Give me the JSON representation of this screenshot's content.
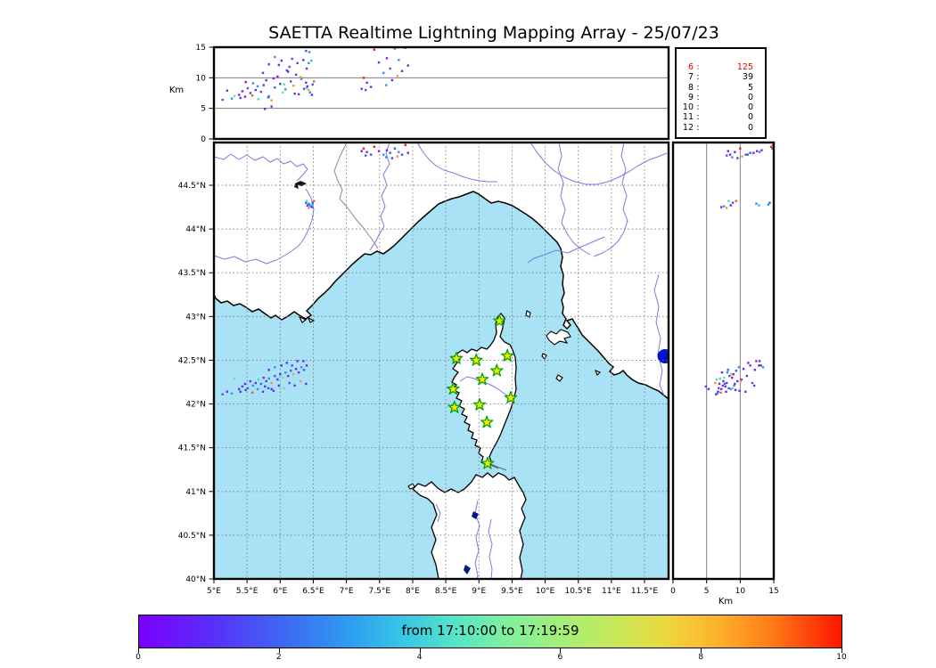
{
  "title": "SAETTA Realtime Lightning Mapping Array - 25/07/23",
  "chart_data": {
    "type": "scatter",
    "title": "SAETTA Realtime Lightning Mapping Array - 25/07/23",
    "panels": {
      "alt_vs_lon": {
        "ylabel": "Km",
        "ylim": [
          0,
          15
        ],
        "ytick_labels": [
          "0",
          "5",
          "10",
          "15"
        ],
        "grid": "horizontal at 5 and 10"
      },
      "map": {
        "xlim_deg_e": [
          5.0,
          11.86
        ],
        "ylim_deg_n": [
          40.0,
          45.0
        ],
        "lon_tick_labels": [
          "5°E",
          "5.5°E",
          "6°E",
          "6.5°E",
          "7°E",
          "7.5°E",
          "8°E",
          "8.5°E",
          "9°E",
          "9.5°E",
          "10°E",
          "10.5°E",
          "11°E",
          "11.5°E"
        ],
        "lat_tick_labels": [
          "44.5°N",
          "44°N",
          "43.5°N",
          "43°N",
          "42.5°N",
          "42°N",
          "41.5°N",
          "41°N",
          "40.5°N",
          "40°N"
        ],
        "grid": "dashed both axes every 0.5 degree"
      },
      "alt_vs_lat": {
        "xlabel": "Km",
        "xlim": [
          0,
          15
        ],
        "xtick_labels": [
          "0",
          "5",
          "10",
          "15"
        ],
        "grid": "vertical at 5 and 10"
      },
      "histogram": {
        "rows": [
          [
            "6",
            "125"
          ],
          [
            "7",
            "39"
          ],
          [
            "8",
            "5"
          ],
          [
            "9",
            "0"
          ],
          [
            "10",
            "0"
          ],
          [
            "11",
            "0"
          ],
          [
            "12",
            "0"
          ]
        ],
        "highlight_row": 0,
        "highlight_color": "#f20000"
      }
    },
    "palette": [
      "#7d22e8",
      "#5535f5",
      "#3a57f8",
      "#2e8ef2",
      "#2fb9ec",
      "#3fd9d0",
      "#6ce88e",
      "#aee85c",
      "#f2c23a",
      "#f59433",
      "#f4581f",
      "#ee2211"
    ],
    "events_lon_lat_altkm_color": [
      [
        5.38,
        42.17,
        7.2,
        0
      ],
      [
        5.43,
        42.2,
        7.8,
        1
      ],
      [
        5.47,
        42.23,
        6.9,
        0
      ],
      [
        5.51,
        42.18,
        8.3,
        2
      ],
      [
        5.55,
        42.26,
        7.5,
        0
      ],
      [
        5.59,
        42.21,
        9.1,
        3
      ],
      [
        5.63,
        42.24,
        8.0,
        1
      ],
      [
        5.67,
        42.28,
        6.5,
        5
      ],
      [
        5.71,
        42.23,
        7.7,
        2
      ],
      [
        5.75,
        42.3,
        8.8,
        0
      ],
      [
        5.79,
        42.26,
        9.6,
        1
      ],
      [
        5.83,
        42.29,
        7.0,
        3
      ],
      [
        5.87,
        42.24,
        6.3,
        9
      ],
      [
        5.92,
        42.32,
        8.4,
        2
      ],
      [
        5.96,
        42.28,
        10.2,
        0
      ],
      [
        6.0,
        42.34,
        9.0,
        1
      ],
      [
        6.04,
        42.3,
        7.6,
        6
      ],
      [
        6.08,
        42.36,
        8.1,
        3
      ],
      [
        6.12,
        42.32,
        11.0,
        0
      ],
      [
        6.16,
        42.38,
        9.4,
        2
      ],
      [
        6.2,
        42.34,
        8.7,
        9
      ],
      [
        6.24,
        42.4,
        10.5,
        1
      ],
      [
        6.28,
        42.36,
        7.3,
        0
      ],
      [
        6.32,
        42.42,
        9.8,
        3
      ],
      [
        6.36,
        42.39,
        8.2,
        2
      ],
      [
        6.4,
        42.44,
        11.5,
        0
      ],
      [
        5.4,
        42.14,
        6.7,
        1
      ],
      [
        5.48,
        42.16,
        9.3,
        0
      ],
      [
        5.58,
        42.13,
        7.1,
        10
      ],
      [
        5.66,
        42.17,
        8.6,
        3
      ],
      [
        5.74,
        42.14,
        10.8,
        0
      ],
      [
        5.82,
        42.18,
        6.8,
        2
      ],
      [
        5.9,
        42.15,
        9.9,
        1
      ],
      [
        5.98,
        42.21,
        12.1,
        0
      ],
      [
        6.06,
        42.18,
        8.9,
        6
      ],
      [
        6.14,
        42.24,
        11.8,
        2
      ],
      [
        6.22,
        42.21,
        7.4,
        0
      ],
      [
        6.31,
        42.26,
        10.1,
        9
      ],
      [
        6.39,
        42.23,
        9.2,
        1
      ],
      [
        5.27,
        42.12,
        6.6,
        3
      ],
      [
        5.2,
        42.14,
        7.9,
        0
      ],
      [
        5.13,
        42.11,
        6.4,
        2
      ],
      [
        6.02,
        42.44,
        12.8,
        0
      ],
      [
        6.1,
        42.47,
        11.2,
        1
      ],
      [
        6.18,
        42.44,
        13.1,
        2
      ],
      [
        6.26,
        42.49,
        12.4,
        0
      ],
      [
        5.92,
        42.42,
        13.4,
        3
      ],
      [
        5.83,
        42.39,
        12.2,
        0
      ],
      [
        5.77,
        42.2,
        4.9,
        1
      ],
      [
        5.87,
        42.17,
        5.3,
        0
      ],
      [
        5.31,
        42.29,
        7.0,
        6
      ],
      [
        6.35,
        42.49,
        12.9,
        0
      ],
      [
        6.39,
        44.3,
        14.4,
        2
      ],
      [
        6.44,
        44.28,
        14.2,
        3
      ],
      [
        6.4,
        44.32,
        8.3,
        5
      ],
      [
        6.45,
        44.26,
        7.6,
        3
      ],
      [
        6.49,
        44.3,
        8.9,
        2
      ],
      [
        6.43,
        44.24,
        8.0,
        9
      ],
      [
        6.48,
        44.25,
        7.2,
        1
      ],
      [
        6.51,
        44.32,
        9.4,
        10
      ],
      [
        6.41,
        44.27,
        8.6,
        0
      ],
      [
        6.43,
        44.29,
        12.4,
        3
      ],
      [
        6.47,
        44.27,
        12.8,
        4
      ],
      [
        7.26,
        44.92,
        10.0,
        11
      ],
      [
        7.31,
        44.88,
        9.2,
        0
      ],
      [
        7.37,
        44.85,
        8.5,
        1
      ],
      [
        7.42,
        44.94,
        14.6,
        11
      ],
      [
        7.49,
        44.89,
        12.5,
        0
      ],
      [
        7.56,
        44.85,
        10.8,
        3
      ],
      [
        7.61,
        44.9,
        13.2,
        0
      ],
      [
        7.66,
        44.87,
        11.5,
        2
      ],
      [
        7.73,
        44.92,
        14.8,
        2
      ],
      [
        7.79,
        44.88,
        12.9,
        3
      ],
      [
        7.84,
        44.85,
        11.1,
        1
      ],
      [
        7.89,
        44.96,
        14.9,
        11
      ],
      [
        7.93,
        44.87,
        12.0,
        0
      ],
      [
        7.77,
        44.83,
        10.3,
        9
      ],
      [
        7.69,
        44.81,
        9.6,
        1
      ],
      [
        7.6,
        44.82,
        8.8,
        3
      ],
      [
        7.23,
        44.89,
        8.2,
        0
      ],
      [
        7.29,
        44.84,
        8.0,
        2
      ]
    ],
    "stations_lon_lat": [
      [
        9.31,
        42.95
      ],
      [
        8.66,
        42.52
      ],
      [
        8.96,
        42.5
      ],
      [
        9.43,
        42.55
      ],
      [
        9.27,
        42.38
      ],
      [
        9.05,
        42.28
      ],
      [
        8.61,
        42.17
      ],
      [
        9.48,
        42.07
      ],
      [
        8.63,
        41.96
      ],
      [
        9.01,
        41.99
      ],
      [
        9.12,
        41.79
      ],
      [
        9.13,
        41.32
      ]
    ],
    "station_style": {
      "fill": "#ffe400",
      "stroke": "#00a800"
    },
    "colorbar": {
      "label": "from 17:10:00 to 17:19:59",
      "ticks": [
        "0",
        "2",
        "4",
        "6",
        "8",
        "10"
      ],
      "gradient": [
        "#7a00fe 0%",
        "#5a2cfa 10%",
        "#3f64f3 20%",
        "#2e9df0 30%",
        "#35c3e8 37%",
        "#55e4c8 45%",
        "#7df0a0 52%",
        "#a3ef7a 60%",
        "#c9e858 68%",
        "#ecd83e 75%",
        "#fdb42c 82%",
        "#fe7c18 90%",
        "#fe1500 100%"
      ]
    },
    "map_colors": {
      "sea": "#a8e2f4",
      "land": "#ffffff",
      "coast": "#000000",
      "river": "#7b7be0",
      "border": "#8a8a8a",
      "lake_blue": "#0013d0"
    }
  }
}
